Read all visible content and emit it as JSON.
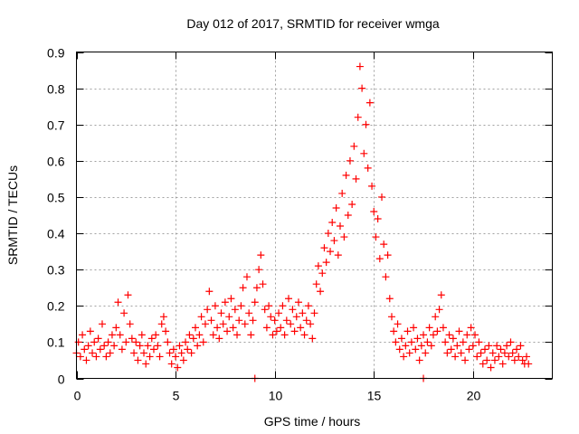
{
  "chart_data": {
    "type": "scatter",
    "title": "Day 012 of 2017, SRMTID for receiver wmga",
    "xlabel": "GPS time / hours",
    "ylabel": "SRMTID / TECUs",
    "xlim": [
      0,
      24
    ],
    "ylim": [
      0,
      0.9
    ],
    "xticks": [
      0,
      5,
      10,
      15,
      20
    ],
    "xtick_labels": [
      "0",
      "5",
      "10",
      "15",
      "20"
    ],
    "yticks": [
      0,
      0.1,
      0.2,
      0.3,
      0.4,
      0.5,
      0.6,
      0.7,
      0.8,
      0.9
    ],
    "ytick_labels": [
      "0",
      "0.1",
      "0.2",
      "0.3",
      "0.4",
      "0.5",
      "0.6",
      "0.7",
      "0.8",
      "0.9"
    ],
    "grid": true,
    "marker": "+",
    "color": "#ff0000",
    "series": [
      {
        "name": "SRMTID",
        "points": [
          [
            0.0,
            0.07
          ],
          [
            0.1,
            0.1
          ],
          [
            0.2,
            0.06
          ],
          [
            0.3,
            0.12
          ],
          [
            0.4,
            0.08
          ],
          [
            0.5,
            0.05
          ],
          [
            0.6,
            0.09
          ],
          [
            0.7,
            0.13
          ],
          [
            0.8,
            0.07
          ],
          [
            0.9,
            0.1
          ],
          [
            1.0,
            0.06
          ],
          [
            1.1,
            0.11
          ],
          [
            1.2,
            0.08
          ],
          [
            1.3,
            0.15
          ],
          [
            1.4,
            0.09
          ],
          [
            1.5,
            0.06
          ],
          [
            1.6,
            0.1
          ],
          [
            1.7,
            0.07
          ],
          [
            1.8,
            0.12
          ],
          [
            1.9,
            0.09
          ],
          [
            2.0,
            0.14
          ],
          [
            2.1,
            0.21
          ],
          [
            2.2,
            0.12
          ],
          [
            2.3,
            0.08
          ],
          [
            2.4,
            0.18
          ],
          [
            2.5,
            0.1
          ],
          [
            2.6,
            0.23
          ],
          [
            2.7,
            0.15
          ],
          [
            2.8,
            0.11
          ],
          [
            2.9,
            0.07
          ],
          [
            3.0,
            0.1
          ],
          [
            3.1,
            0.05
          ],
          [
            3.2,
            0.09
          ],
          [
            3.3,
            0.12
          ],
          [
            3.4,
            0.07
          ],
          [
            3.5,
            0.04
          ],
          [
            3.6,
            0.09
          ],
          [
            3.7,
            0.06
          ],
          [
            3.8,
            0.11
          ],
          [
            3.9,
            0.08
          ],
          [
            4.0,
            0.12
          ],
          [
            4.1,
            0.09
          ],
          [
            4.2,
            0.06
          ],
          [
            4.3,
            0.15
          ],
          [
            4.4,
            0.17
          ],
          [
            4.5,
            0.13
          ],
          [
            4.6,
            0.1
          ],
          [
            4.7,
            0.07
          ],
          [
            4.8,
            0.04
          ],
          [
            4.9,
            0.08
          ],
          [
            5.0,
            0.06
          ],
          [
            5.1,
            0.03
          ],
          [
            5.2,
            0.09
          ],
          [
            5.3,
            0.07
          ],
          [
            5.4,
            0.05
          ],
          [
            5.5,
            0.1
          ],
          [
            5.6,
            0.08
          ],
          [
            5.7,
            0.12
          ],
          [
            5.8,
            0.07
          ],
          [
            5.9,
            0.11
          ],
          [
            6.0,
            0.14
          ],
          [
            6.1,
            0.09
          ],
          [
            6.2,
            0.12
          ],
          [
            6.3,
            0.17
          ],
          [
            6.4,
            0.1
          ],
          [
            6.5,
            0.15
          ],
          [
            6.6,
            0.19
          ],
          [
            6.7,
            0.24
          ],
          [
            6.8,
            0.16
          ],
          [
            6.9,
            0.12
          ],
          [
            7.0,
            0.2
          ],
          [
            7.1,
            0.14
          ],
          [
            7.2,
            0.11
          ],
          [
            7.3,
            0.18
          ],
          [
            7.4,
            0.15
          ],
          [
            7.5,
            0.21
          ],
          [
            7.6,
            0.13
          ],
          [
            7.7,
            0.17
          ],
          [
            7.8,
            0.22
          ],
          [
            7.9,
            0.14
          ],
          [
            8.0,
            0.19
          ],
          [
            8.1,
            0.12
          ],
          [
            8.2,
            0.16
          ],
          [
            8.3,
            0.2
          ],
          [
            8.4,
            0.25
          ],
          [
            8.5,
            0.15
          ],
          [
            8.6,
            0.28
          ],
          [
            8.7,
            0.18
          ],
          [
            8.8,
            0.12
          ],
          [
            8.9,
            0.16
          ],
          [
            9.0,
            0.21
          ],
          [
            9.1,
            0.25
          ],
          [
            9.2,
            0.3
          ],
          [
            9.3,
            0.34
          ],
          [
            9.4,
            0.26
          ],
          [
            9.5,
            0.19
          ],
          [
            9.6,
            0.14
          ],
          [
            9.7,
            0.2
          ],
          [
            9.8,
            0.17
          ],
          [
            9.9,
            0.12
          ],
          [
            10.0,
            0.16
          ],
          [
            10.1,
            0.13
          ],
          [
            10.2,
            0.18
          ],
          [
            10.3,
            0.14
          ],
          [
            10.4,
            0.2
          ],
          [
            10.5,
            0.12
          ],
          [
            10.6,
            0.16
          ],
          [
            10.7,
            0.22
          ],
          [
            10.8,
            0.15
          ],
          [
            10.9,
            0.19
          ],
          [
            11.0,
            0.13
          ],
          [
            11.1,
            0.17
          ],
          [
            11.2,
            0.21
          ],
          [
            11.3,
            0.14
          ],
          [
            11.4,
            0.18
          ],
          [
            11.5,
            0.12
          ],
          [
            11.6,
            0.16
          ],
          [
            11.7,
            0.2
          ],
          [
            11.8,
            0.15
          ],
          [
            11.9,
            0.11
          ],
          [
            12.0,
            0.18
          ],
          [
            12.1,
            0.26
          ],
          [
            12.2,
            0.31
          ],
          [
            12.3,
            0.24
          ],
          [
            12.4,
            0.29
          ],
          [
            12.5,
            0.36
          ],
          [
            12.6,
            0.32
          ],
          [
            12.7,
            0.4
          ],
          [
            12.8,
            0.35
          ],
          [
            12.9,
            0.43
          ],
          [
            13.0,
            0.38
          ],
          [
            13.1,
            0.47
          ],
          [
            13.2,
            0.34
          ],
          [
            13.3,
            0.42
          ],
          [
            13.4,
            0.51
          ],
          [
            13.5,
            0.39
          ],
          [
            13.6,
            0.56
          ],
          [
            13.7,
            0.45
          ],
          [
            13.8,
            0.6
          ],
          [
            13.9,
            0.48
          ],
          [
            14.0,
            0.64
          ],
          [
            14.1,
            0.55
          ],
          [
            14.2,
            0.72
          ],
          [
            14.3,
            0.86
          ],
          [
            14.4,
            0.8
          ],
          [
            14.5,
            0.62
          ],
          [
            14.6,
            0.7
          ],
          [
            14.7,
            0.58
          ],
          [
            14.8,
            0.76
          ],
          [
            14.9,
            0.53
          ],
          [
            15.0,
            0.46
          ],
          [
            15.1,
            0.39
          ],
          [
            15.2,
            0.44
          ],
          [
            15.3,
            0.33
          ],
          [
            15.4,
            0.5
          ],
          [
            15.5,
            0.37
          ],
          [
            15.6,
            0.28
          ],
          [
            15.7,
            0.34
          ],
          [
            15.8,
            0.22
          ],
          [
            15.9,
            0.17
          ],
          [
            16.0,
            0.13
          ],
          [
            16.1,
            0.1
          ],
          [
            16.2,
            0.15
          ],
          [
            16.3,
            0.08
          ],
          [
            16.4,
            0.11
          ],
          [
            16.5,
            0.06
          ],
          [
            16.6,
            0.09
          ],
          [
            16.7,
            0.13
          ],
          [
            16.8,
            0.07
          ],
          [
            16.9,
            0.1
          ],
          [
            17.0,
            0.14
          ],
          [
            17.1,
            0.08
          ],
          [
            17.2,
            0.11
          ],
          [
            17.3,
            0.05
          ],
          [
            17.4,
            0.09
          ],
          [
            17.5,
            0.12
          ],
          [
            17.6,
            0.07
          ],
          [
            17.7,
            0.1
          ],
          [
            17.8,
            0.14
          ],
          [
            17.9,
            0.09
          ],
          [
            18.0,
            0.12
          ],
          [
            18.1,
            0.17
          ],
          [
            18.2,
            0.13
          ],
          [
            18.3,
            0.19
          ],
          [
            18.4,
            0.23
          ],
          [
            18.5,
            0.14
          ],
          [
            18.6,
            0.1
          ],
          [
            18.7,
            0.07
          ],
          [
            18.8,
            0.12
          ],
          [
            18.9,
            0.08
          ],
          [
            19.0,
            0.11
          ],
          [
            19.1,
            0.06
          ],
          [
            19.2,
            0.09
          ],
          [
            19.3,
            0.13
          ],
          [
            19.4,
            0.07
          ],
          [
            19.5,
            0.1
          ],
          [
            19.6,
            0.05
          ],
          [
            19.7,
            0.12
          ],
          [
            19.8,
            0.08
          ],
          [
            19.9,
            0.14
          ],
          [
            20.0,
            0.09
          ],
          [
            20.1,
            0.12
          ],
          [
            20.2,
            0.06
          ],
          [
            20.3,
            0.1
          ],
          [
            20.4,
            0.07
          ],
          [
            20.5,
            0.04
          ],
          [
            20.6,
            0.08
          ],
          [
            20.7,
            0.05
          ],
          [
            20.8,
            0.09
          ],
          [
            20.9,
            0.03
          ],
          [
            21.0,
            0.07
          ],
          [
            21.1,
            0.05
          ],
          [
            21.2,
            0.09
          ],
          [
            21.3,
            0.06
          ],
          [
            21.4,
            0.08
          ],
          [
            21.5,
            0.04
          ],
          [
            21.6,
            0.07
          ],
          [
            21.7,
            0.09
          ],
          [
            21.8,
            0.06
          ],
          [
            21.9,
            0.1
          ],
          [
            22.0,
            0.07
          ],
          [
            22.1,
            0.05
          ],
          [
            22.2,
            0.08
          ],
          [
            22.3,
            0.06
          ],
          [
            22.4,
            0.09
          ],
          [
            22.5,
            0.05
          ],
          [
            22.6,
            0.04
          ],
          [
            22.7,
            0.06
          ],
          [
            22.8,
            0.04
          ],
          [
            9.0,
            0.0
          ],
          [
            17.5,
            0.0
          ]
        ]
      }
    ]
  }
}
